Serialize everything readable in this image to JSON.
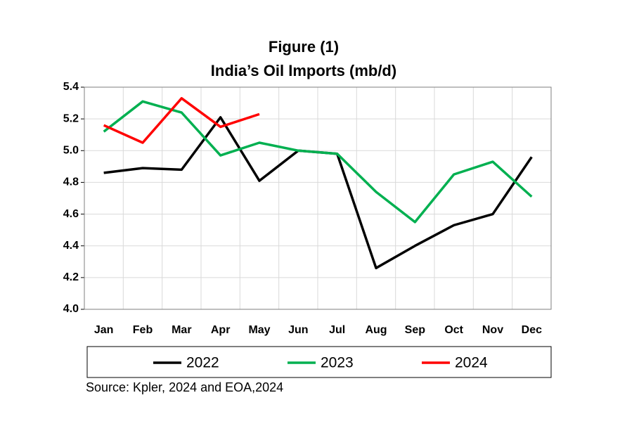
{
  "chart_data": {
    "type": "line",
    "title": "Figure (1)",
    "subtitle": "India’s Oil Imports (mb/d)",
    "source": "Source: Kpler, 2024 and EOA,2024",
    "categories": [
      "Jan",
      "Feb",
      "Mar",
      "Apr",
      "May",
      "Jun",
      "Jul",
      "Aug",
      "Sep",
      "Oct",
      "Nov",
      "Dec"
    ],
    "series": [
      {
        "name": "2022",
        "color": "#000000",
        "values": [
          4.86,
          4.89,
          4.88,
          5.21,
          4.81,
          5.0,
          4.98,
          4.26,
          4.4,
          4.53,
          4.6,
          4.96
        ]
      },
      {
        "name": "2023",
        "color": "#00b050",
        "values": [
          5.12,
          5.31,
          5.24,
          4.97,
          5.05,
          5.0,
          4.98,
          4.74,
          4.55,
          4.85,
          4.93,
          4.71
        ]
      },
      {
        "name": "2024",
        "color": "#ff0000",
        "values": [
          5.16,
          5.05,
          5.33,
          5.15,
          5.23,
          null,
          null,
          null,
          null,
          null,
          null,
          null
        ]
      }
    ],
    "ylim": [
      4.0,
      5.4
    ],
    "yticks": [
      {
        "value": 4.0,
        "label": "4.0"
      },
      {
        "value": 4.2,
        "label": "4.2"
      },
      {
        "value": 4.4,
        "label": "4.4"
      },
      {
        "value": 4.6,
        "label": "4.6"
      },
      {
        "value": 4.8,
        "label": "4.8"
      },
      {
        "value": 5.0,
        "label": "5.0"
      },
      {
        "value": 5.2,
        "label": "5.2"
      },
      {
        "value": 5.4,
        "label": "5.4"
      }
    ],
    "grid": true,
    "legend": "bottom"
  }
}
